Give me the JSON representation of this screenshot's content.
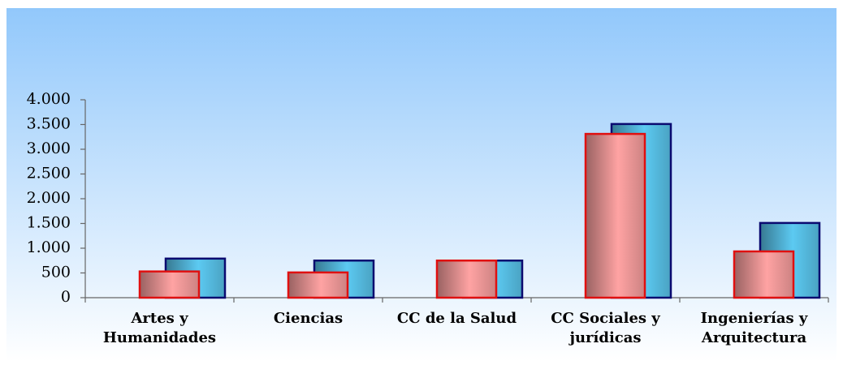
{
  "chart_data": {
    "type": "bar",
    "categories": [
      "Artes y Humanidades",
      "Ciencias",
      "CC de la Salud",
      "CC Sociales y jurídicas",
      "Ingenierías y Arquitectura"
    ],
    "series": [
      {
        "color": "#ffa3a3",
        "values": [
          530,
          510,
          750,
          3310,
          935
        ]
      },
      {
        "color": "#5ccaf2",
        "values": [
          790,
          750,
          750,
          3510,
          1510
        ]
      }
    ],
    "ylim": [
      0,
      4000
    ],
    "yticks": [
      0,
      500,
      {
        "value": 1000,
        "label": "1.000"
      },
      {
        "value": 1500,
        "label": "1.500"
      },
      {
        "value": 2000,
        "label": "2.000"
      },
      {
        "value": 2500,
        "label": "2.500"
      },
      {
        "value": 3000,
        "label": "3.000"
      },
      {
        "value": 3500,
        "label": "3.500"
      },
      {
        "value": 4000,
        "label": "4.000"
      }
    ]
  }
}
